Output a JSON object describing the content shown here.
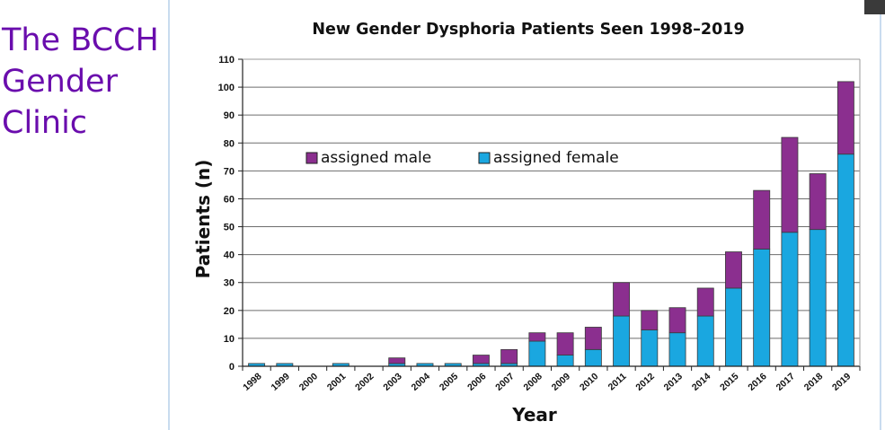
{
  "slide": {
    "title_lines": [
      "The BCCH",
      "Gender",
      "Clinic"
    ],
    "title_color": "#6a0dad"
  },
  "chart_data": {
    "type": "bar",
    "stacked": true,
    "title": "New Gender Dysphoria Patients Seen 1998–2019",
    "xlabel": "Year",
    "ylabel": "Patients (n)",
    "ylim": [
      0,
      110
    ],
    "yticks": [
      0,
      10,
      20,
      30,
      40,
      50,
      60,
      70,
      80,
      90,
      100,
      110
    ],
    "grid": true,
    "legend_position": "upper-left",
    "categories": [
      "1998",
      "1999",
      "2000",
      "2001",
      "2002",
      "2003",
      "2004",
      "2005",
      "2006",
      "2007",
      "2008",
      "2009",
      "2010",
      "2011",
      "2012",
      "2013",
      "2014",
      "2015",
      "2016",
      "2017",
      "2018",
      "2019"
    ],
    "series": [
      {
        "name": "assigned female",
        "color": "#1aa7e0",
        "values": [
          1,
          1,
          0,
          1,
          0,
          1,
          1,
          1,
          1,
          1,
          9,
          4,
          6,
          18,
          13,
          12,
          18,
          28,
          42,
          48,
          49,
          76
        ]
      },
      {
        "name": "assigned male",
        "color": "#8b2f8f",
        "values": [
          0,
          0,
          0,
          0,
          0,
          2,
          0,
          0,
          3,
          5,
          3,
          8,
          8,
          12,
          7,
          9,
          10,
          13,
          21,
          34,
          20,
          26
        ]
      }
    ],
    "legend_order": [
      "assigned male",
      "assigned female"
    ]
  }
}
